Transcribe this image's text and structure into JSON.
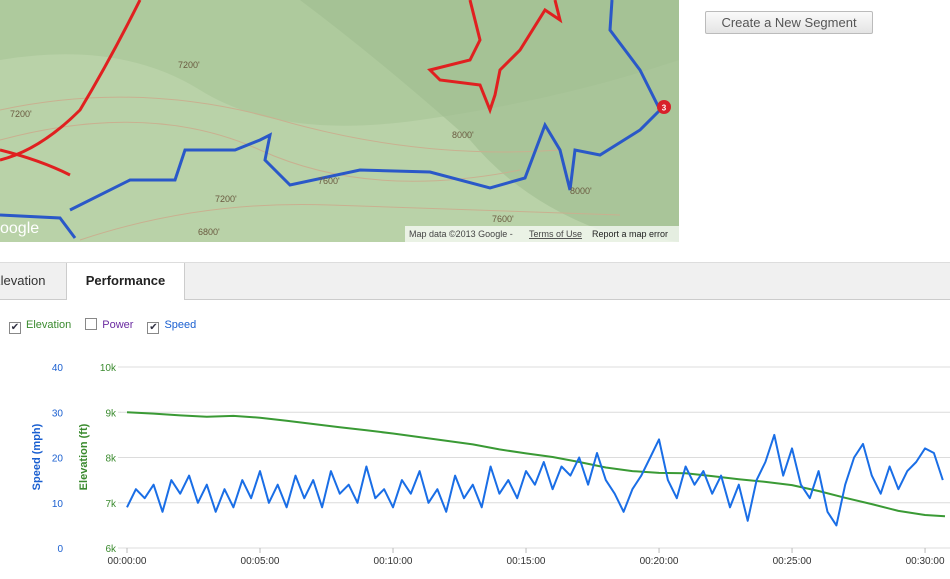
{
  "map": {
    "contour_labels": [
      "7200'",
      "7200'",
      "8000'",
      "8000'",
      "7600'",
      "7200'",
      "6800'",
      "7600'"
    ],
    "marker": "3",
    "logo": "oogle",
    "attribution": "Map data ©2013 Google -",
    "terms": "Terms of Use",
    "report": "Report a map error"
  },
  "button": "Create a New Segment",
  "tabs": [
    "Elevation",
    "Performance"
  ],
  "toggles": [
    {
      "label": "Elevation",
      "checked": true,
      "color": "#3a8a2e"
    },
    {
      "label": "Power",
      "checked": false,
      "color": "#6a2aa0"
    },
    {
      "label": "Speed",
      "checked": true,
      "color": "#1a5fd0"
    }
  ],
  "chart_data": {
    "type": "line",
    "ylabel": "Speed (mph)",
    "y2label": "Elevation (ft)",
    "xlim": [
      0,
      1845
    ],
    "xticks": [
      {
        "value": 0,
        "label": "00:00:00"
      },
      {
        "value": 300,
        "label": "00:05:00"
      },
      {
        "value": 600,
        "label": "00:10:00"
      },
      {
        "value": 900,
        "label": "00:15:00"
      },
      {
        "value": 1200,
        "label": "00:20:00"
      },
      {
        "value": 1500,
        "label": "00:25:00"
      },
      {
        "value": 1800,
        "label": "00:30:00"
      }
    ],
    "ylim": [
      0,
      40
    ],
    "yticks": [
      0,
      10,
      20,
      30,
      40
    ],
    "y2lim": [
      6000,
      10000
    ],
    "y2ticks": [
      {
        "value": 6000,
        "label": "6k"
      },
      {
        "value": 7000,
        "label": "7k"
      },
      {
        "value": 8000,
        "label": "8k"
      },
      {
        "value": 9000,
        "label": "9k"
      },
      {
        "value": 10000,
        "label": "10k"
      }
    ],
    "grid": true,
    "series": [
      {
        "name": "Elevation",
        "color": "#3a9a35",
        "axis": "y2",
        "x": [
          0,
          60,
          120,
          180,
          240,
          300,
          360,
          420,
          480,
          540,
          600,
          660,
          720,
          780,
          840,
          900,
          960,
          1020,
          1080,
          1140,
          1200,
          1260,
          1320,
          1380,
          1440,
          1500,
          1560,
          1620,
          1680,
          1740,
          1800,
          1845
        ],
        "values": [
          9000,
          8970,
          8930,
          8900,
          8920,
          8880,
          8810,
          8740,
          8670,
          8600,
          8530,
          8450,
          8370,
          8290,
          8180,
          8090,
          8010,
          7900,
          7780,
          7700,
          7660,
          7650,
          7590,
          7520,
          7460,
          7390,
          7260,
          7110,
          6970,
          6820,
          6730,
          6700
        ]
      },
      {
        "name": "Speed",
        "color": "#1a6ee6",
        "x": [
          0,
          20,
          40,
          60,
          80,
          100,
          120,
          140,
          160,
          180,
          200,
          220,
          240,
          260,
          280,
          300,
          320,
          340,
          360,
          380,
          400,
          420,
          440,
          460,
          480,
          500,
          520,
          540,
          560,
          580,
          600,
          620,
          640,
          660,
          680,
          700,
          720,
          740,
          760,
          780,
          800,
          820,
          840,
          860,
          880,
          900,
          920,
          940,
          960,
          980,
          1000,
          1020,
          1040,
          1060,
          1080,
          1100,
          1120,
          1140,
          1160,
          1180,
          1200,
          1220,
          1240,
          1260,
          1280,
          1300,
          1320,
          1340,
          1360,
          1380,
          1400,
          1420,
          1440,
          1460,
          1480,
          1500,
          1520,
          1540,
          1560,
          1580,
          1600,
          1620,
          1640,
          1660,
          1680,
          1700,
          1720,
          1740,
          1760,
          1780,
          1800,
          1820,
          1840
        ],
        "values": [
          9,
          13,
          11,
          14,
          8,
          15,
          12,
          16,
          10,
          14,
          8,
          13,
          9,
          15,
          11,
          17,
          10,
          14,
          9,
          16,
          11,
          15,
          9,
          17,
          12,
          14,
          10,
          18,
          11,
          13,
          9,
          15,
          12,
          17,
          10,
          13,
          8,
          16,
          11,
          14,
          9,
          18,
          12,
          15,
          11,
          17,
          14,
          19,
          13,
          18,
          16,
          20,
          14,
          21,
          15,
          12,
          8,
          13,
          16,
          20,
          24,
          15,
          11,
          18,
          14,
          17,
          12,
          16,
          9,
          14,
          6,
          15,
          19,
          25,
          16,
          22,
          14,
          11,
          17,
          8,
          5,
          14,
          20,
          23,
          16,
          12,
          18,
          13,
          17,
          19,
          22,
          21,
          15
        ]
      }
    ]
  }
}
